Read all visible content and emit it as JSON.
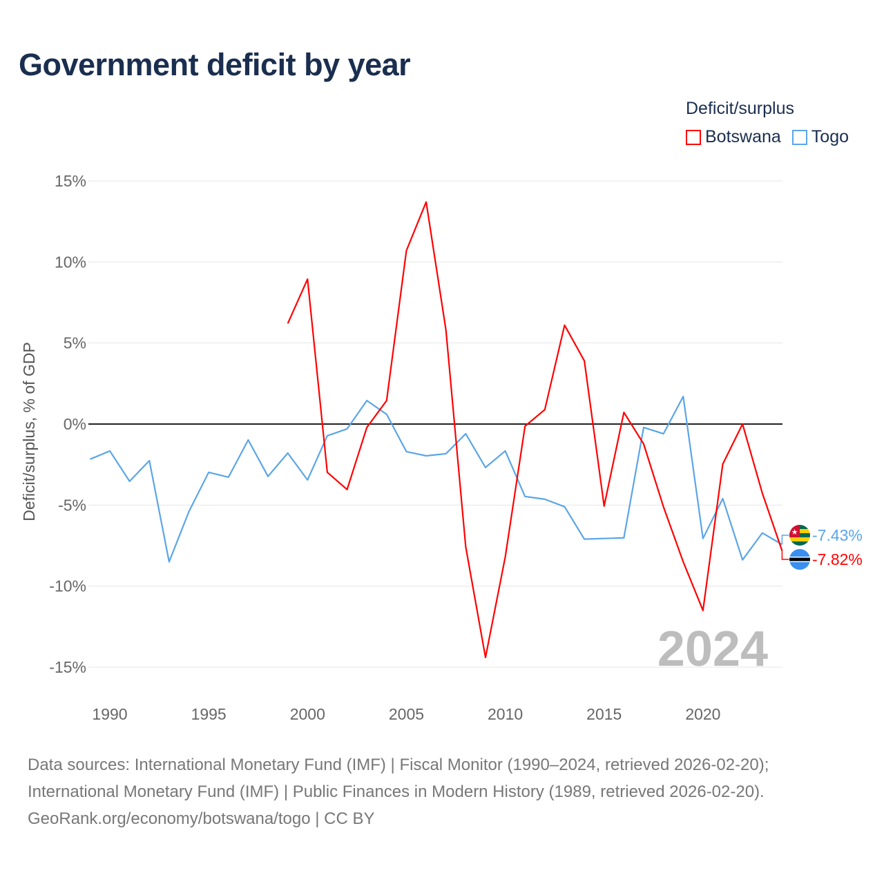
{
  "title": "Government deficit by year",
  "footer": {
    "line1": "Data sources: International Monetary Fund (IMF) | Fiscal Monitor (1990–2024, retrieved 2026-02-20);",
    "line2": "International Monetary Fund (IMF) | Public Finances in Modern History (1989, retrieved 2026-02-20).",
    "line3": "GeoRank.org/economy/botswana/togo | CC BY"
  },
  "chart_data": {
    "type": "line",
    "title": "Government deficit by year",
    "ylabel": "Deficit/surplus, % of GDP",
    "xlabel": "",
    "ylim": [
      -15,
      15
    ],
    "xlim": [
      1989,
      2024
    ],
    "yticks": [
      15,
      10,
      5,
      0,
      -5,
      -10,
      -15
    ],
    "ytick_labels": [
      "15%",
      "10%",
      "5%",
      "0%",
      "-5%",
      "-10%",
      "-15%"
    ],
    "xticks": [
      1990,
      1995,
      2000,
      2005,
      2010,
      2015,
      2020
    ],
    "xtick_labels": [
      "1990",
      "1995",
      "2000",
      "2005",
      "2010",
      "2015",
      "2020"
    ],
    "year_watermark": "2024",
    "legend": {
      "title": "Deficit/surplus",
      "placement": "top-right"
    },
    "grid": true,
    "series": [
      {
        "name": "Botswana",
        "color": "#ff0000",
        "end_label": "-7.82%",
        "flag": "botswana-flag",
        "x": [
          1999,
          2000,
          2001,
          2002,
          2003,
          2004,
          2005,
          2006,
          2007,
          2008,
          2009,
          2010,
          2011,
          2012,
          2013,
          2014,
          2015,
          2016,
          2017,
          2018,
          2019,
          2020,
          2021,
          2022,
          2023,
          2024
        ],
        "values": [
          6.2,
          8.94,
          -2.98,
          -4.04,
          -0.21,
          1.45,
          10.7,
          13.7,
          5.8,
          -7.57,
          -14.4,
          -8.2,
          -0.13,
          0.89,
          6.1,
          3.9,
          -5.06,
          0.72,
          -1.23,
          -5.1,
          -8.5,
          -11.5,
          -2.47,
          0.0,
          -4.26,
          -7.82
        ]
      },
      {
        "name": "Togo",
        "color": "#5aa5e8",
        "end_label": "-7.43%",
        "flag": "togo-flag",
        "x": [
          1989,
          1990,
          1991,
          1992,
          1993,
          1994,
          1995,
          1996,
          1997,
          1998,
          1999,
          2000,
          2001,
          2002,
          2003,
          2004,
          2005,
          2006,
          2007,
          2008,
          2009,
          2010,
          2011,
          2012,
          2013,
          2014,
          2015,
          2016,
          2017,
          2018,
          2019,
          2020,
          2021,
          2022,
          2023,
          2024
        ],
        "values": [
          -2.17,
          -1.66,
          -3.53,
          -2.26,
          -8.5,
          -5.4,
          -2.98,
          -3.28,
          -0.98,
          -3.23,
          -1.79,
          -3.45,
          -0.72,
          -0.3,
          1.45,
          0.6,
          -1.7,
          -1.96,
          -1.83,
          -0.6,
          -2.68,
          -1.66,
          -4.47,
          -4.64,
          -5.1,
          -7.1,
          -7.06,
          -7.02,
          -0.21,
          -0.6,
          1.7,
          -7.06,
          -4.6,
          -8.38,
          -6.72,
          -7.43
        ]
      }
    ]
  }
}
